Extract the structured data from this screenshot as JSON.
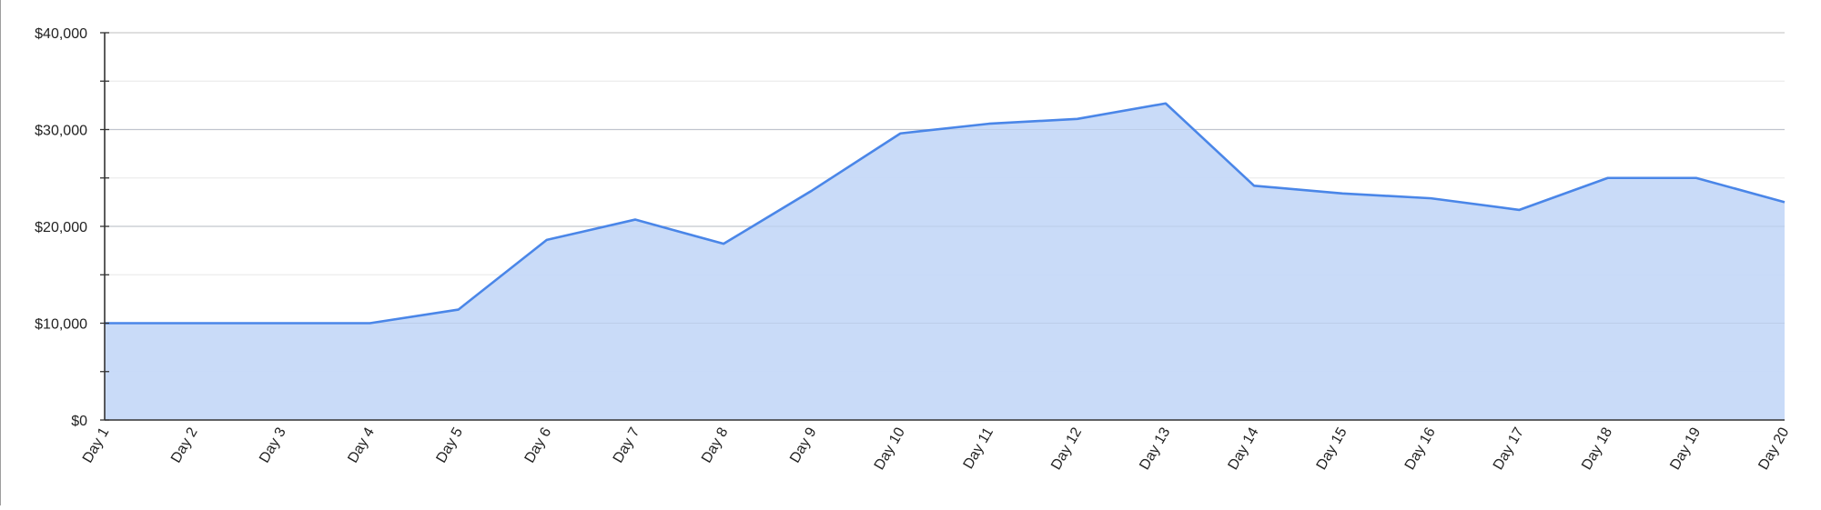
{
  "chart_data": {
    "type": "area",
    "title": "",
    "xlabel": "",
    "ylabel": "",
    "categories": [
      "Day 1",
      "Day 2",
      "Day 3",
      "Day 4",
      "Day 5",
      "Day 6",
      "Day 7",
      "Day 8",
      "Day 9",
      "Day 10",
      "Day 11",
      "Day 12",
      "Day 13",
      "Day 14",
      "Day 15",
      "Day 16",
      "Day 17",
      "Day 18",
      "Day 19",
      "Day 20"
    ],
    "series": [
      {
        "values": [
          10000,
          10000,
          10000,
          10000,
          11400,
          18600,
          20700,
          18200,
          23700,
          29600,
          30600,
          31100,
          32700,
          24200,
          23400,
          22900,
          21700,
          25000,
          25000,
          22500
        ]
      }
    ],
    "ylim": [
      0,
      40000
    ],
    "yticks": [
      0,
      10000,
      20000,
      30000,
      40000
    ],
    "ytick_labels": [
      "$0",
      "$10,000",
      "$20,000",
      "$30,000",
      "$40,000"
    ],
    "grid": true,
    "legend": "none",
    "colors": {
      "line": "#4a86e8",
      "fill": "#c6d9f8",
      "grid_major": "#cccccc",
      "grid_minor": "#ebebeb",
      "axis": "#333333"
    }
  }
}
